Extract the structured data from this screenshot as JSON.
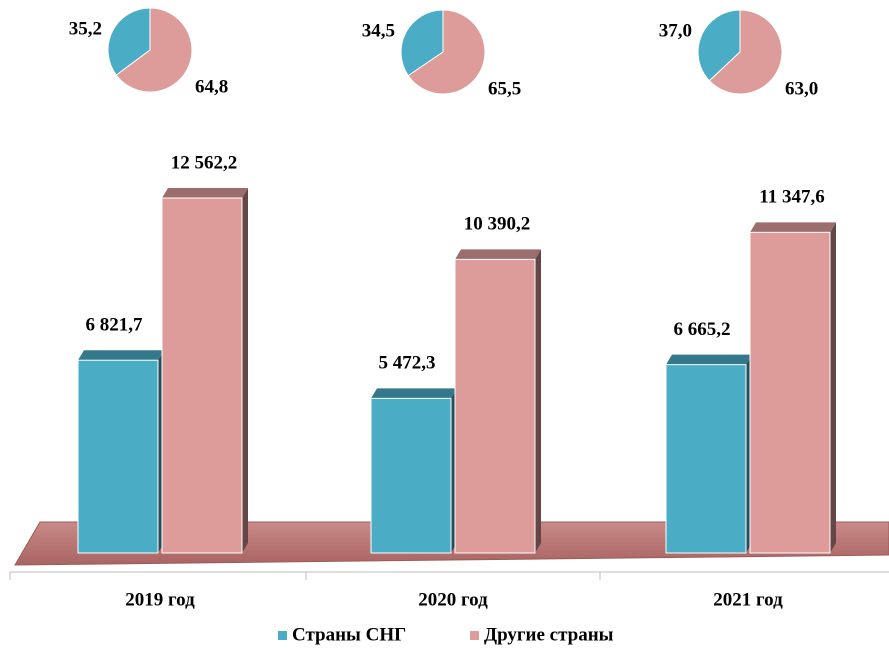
{
  "chart_data": [
    {
      "type": "bar",
      "categories": [
        "2019 год",
        "2020 год",
        "2021 год"
      ],
      "series": [
        {
          "name": "Страны СНГ",
          "color": "#4bacc6",
          "values": [
            6821.7,
            5472.3,
            6665.2
          ],
          "value_labels": [
            "6 821,7",
            "5 472,3",
            "6 665,2"
          ]
        },
        {
          "name": "Другие страны",
          "color": "#dd9c9a",
          "values": [
            12562.2,
            10390.2,
            11347.6
          ],
          "value_labels": [
            "12 562,2",
            "10 390,2",
            "11 347,6"
          ]
        }
      ],
      "legend": "bottom"
    },
    {
      "type": "pie",
      "values": [
        35.2,
        64.8
      ],
      "value_labels": [
        "35,2",
        "64,8"
      ],
      "colors": [
        "#4bacc6",
        "#dd9c9a"
      ]
    },
    {
      "type": "pie",
      "values": [
        34.5,
        65.5
      ],
      "value_labels": [
        "34,5",
        "65,5"
      ],
      "colors": [
        "#4bacc6",
        "#dd9c9a"
      ]
    },
    {
      "type": "pie",
      "values": [
        37.0,
        63.0
      ],
      "value_labels": [
        "37,0",
        "63,0"
      ],
      "colors": [
        "#4bacc6",
        "#dd9c9a"
      ]
    }
  ]
}
